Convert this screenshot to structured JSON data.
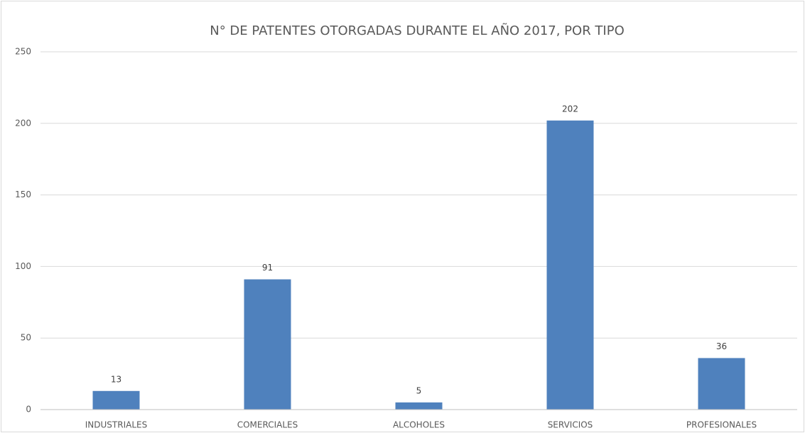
{
  "chart_data": {
    "type": "bar",
    "title": "N° DE PATENTES OTORGADAS DURANTE EL AÑO 2017, POR TIPO",
    "categories": [
      "INDUSTRIALES",
      "COMERCIALES",
      "ALCOHOLES",
      "SERVICIOS",
      "PROFESIONALES"
    ],
    "values": [
      13,
      91,
      5,
      202,
      36
    ],
    "color": "#4f81bd",
    "ylim": [
      0,
      250
    ],
    "yticks": [
      0,
      50,
      100,
      150,
      200,
      250
    ],
    "grid": true,
    "data_labels": true
  }
}
